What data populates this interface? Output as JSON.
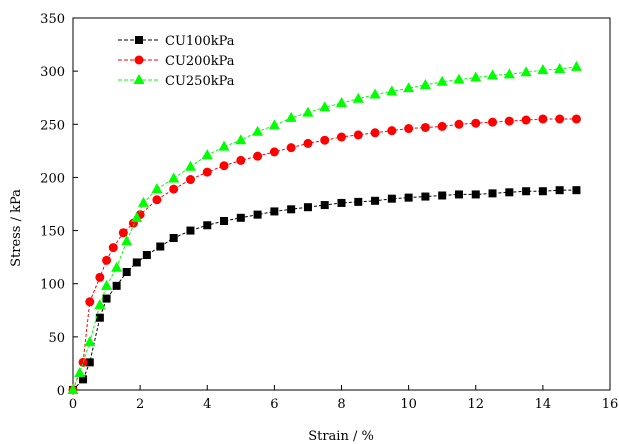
{
  "chart_data": {
    "type": "scatter",
    "xlabel": "Strain / %",
    "ylabel": "Stress / kPa",
    "xlim": [
      0,
      16
    ],
    "ylim": [
      0,
      350
    ],
    "xticks": [
      0,
      2,
      4,
      6,
      8,
      10,
      12,
      14,
      16
    ],
    "yticks": [
      0,
      50,
      100,
      150,
      200,
      250,
      300,
      350
    ],
    "grid": false,
    "legend_position": "top-left",
    "series": [
      {
        "name": "CU100kPa",
        "color": "#000000",
        "marker": "square",
        "x": [
          0,
          0.3,
          0.5,
          0.8,
          1.0,
          1.3,
          1.6,
          1.9,
          2.2,
          2.6,
          3.0,
          3.5,
          4.0,
          4.5,
          5.0,
          5.5,
          6.0,
          6.5,
          7.0,
          7.5,
          8.0,
          8.5,
          9.0,
          9.5,
          10.0,
          10.5,
          11.0,
          11.5,
          12.0,
          12.5,
          13.0,
          13.5,
          14.0,
          14.5,
          15.0
        ],
        "y": [
          0,
          10,
          26,
          68,
          86,
          98,
          111,
          120,
          127,
          135,
          143,
          150,
          155,
          159,
          162,
          165,
          168,
          170,
          172,
          174,
          176,
          177,
          178,
          180,
          181,
          182,
          183,
          184,
          184,
          185,
          186,
          187,
          187,
          188,
          188
        ]
      },
      {
        "name": "CU200kPa",
        "color": "#ff0000",
        "marker": "circle",
        "x": [
          0,
          0.3,
          0.5,
          0.8,
          1.0,
          1.2,
          1.5,
          1.8,
          2.0,
          2.5,
          3.0,
          3.5,
          4.0,
          4.5,
          5.0,
          5.5,
          6.0,
          6.5,
          7.0,
          7.5,
          8.0,
          8.5,
          9.0,
          9.5,
          10.0,
          10.5,
          11.0,
          11.5,
          12.0,
          12.5,
          13.0,
          13.5,
          14.0,
          14.5,
          15.0
        ],
        "y": [
          0,
          26,
          83,
          106,
          122,
          134,
          148,
          157,
          165,
          179,
          189,
          198,
          205,
          211,
          216,
          220,
          224,
          228,
          232,
          235,
          238,
          240,
          242,
          244,
          246,
          247,
          248,
          250,
          251,
          252,
          253,
          254,
          255,
          255,
          255
        ]
      },
      {
        "name": "CU250kPa",
        "color": "#00ff00",
        "marker": "triangle",
        "x": [
          0,
          0.2,
          0.5,
          0.8,
          1.0,
          1.3,
          1.6,
          1.9,
          2.1,
          2.5,
          3.0,
          3.5,
          4.0,
          4.5,
          5.0,
          5.5,
          6.0,
          6.5,
          7.0,
          7.5,
          8.0,
          8.5,
          9.0,
          9.5,
          10.0,
          10.5,
          11.0,
          11.5,
          12.0,
          12.5,
          13.0,
          13.5,
          14.0,
          14.5,
          15.0
        ],
        "y": [
          0,
          16,
          45,
          80,
          98,
          115,
          140,
          162,
          176,
          189,
          199,
          210,
          221,
          229,
          235,
          243,
          249,
          256,
          261,
          266,
          270,
          274,
          278,
          281,
          284,
          287,
          290,
          292,
          294,
          296,
          297,
          299,
          301,
          302,
          304
        ]
      }
    ]
  }
}
